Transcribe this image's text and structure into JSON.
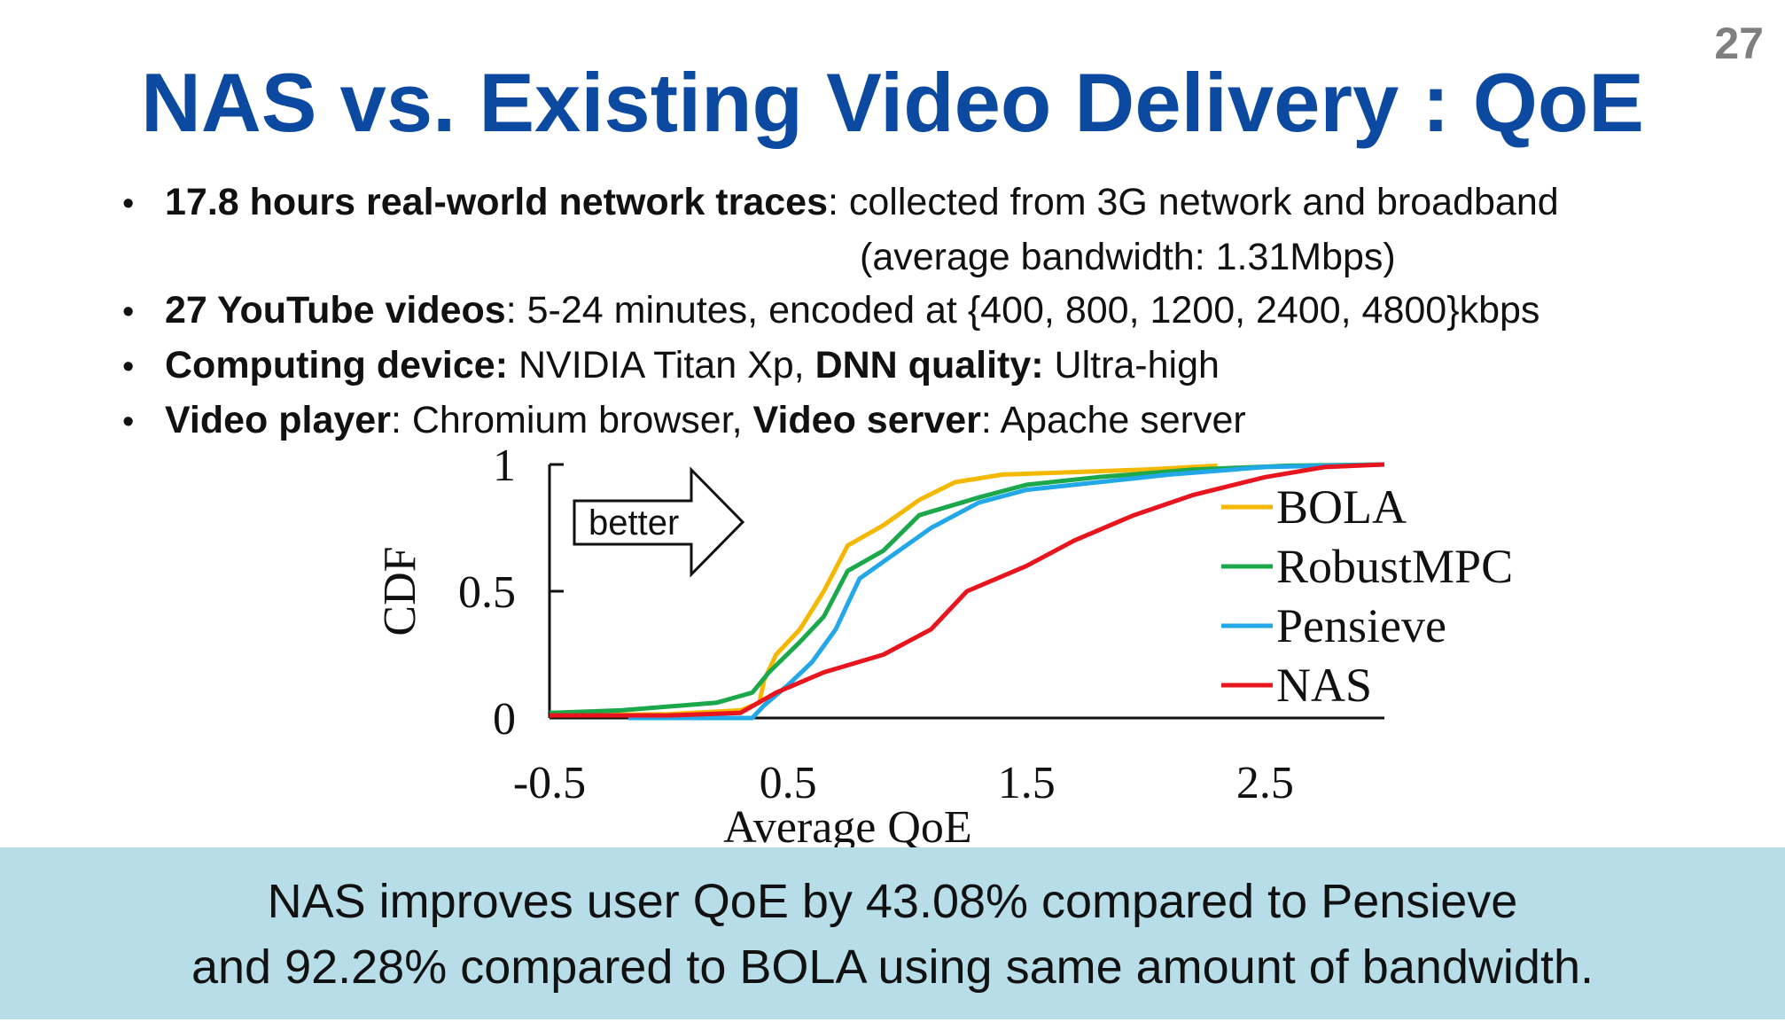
{
  "slide": {
    "number": "27",
    "title": "NAS vs. Existing Video Delivery : QoE"
  },
  "bullets": [
    {
      "bold": "17.8 hours real-world network traces",
      "text": ": collected from 3G network and broadband",
      "cont": "(average bandwidth: 1.31Mbps)"
    },
    {
      "bold": "27 YouTube videos",
      "text": ": 5-24 minutes, encoded at {400, 800, 1200, 2400, 4800}kbps"
    },
    {
      "bold": "Computing device:",
      "text": " NVIDIA Titan Xp, ",
      "bold2": "DNN quality:",
      "text2": " Ultra-high"
    },
    {
      "bold": "Video player",
      "text": ": Chromium browser, ",
      "bold2": "Video server",
      "text2": ": Apache server"
    }
  ],
  "annotation": "better",
  "callout": {
    "line1": "NAS improves user QoE by 43.08% compared to Pensieve",
    "line2": "and 92.28% compared to BOLA using same amount of bandwidth."
  },
  "chart_data": {
    "type": "line",
    "xlabel": "Average QoE",
    "ylabel": "CDF",
    "xlim": [
      -0.5,
      3.0
    ],
    "ylim": [
      0,
      1
    ],
    "xticks": [
      "-0.5",
      "0.5",
      "1.5",
      "2.5"
    ],
    "xtick_values": [
      -0.5,
      0.5,
      1.5,
      2.5
    ],
    "yticks": [
      "0",
      "0.5",
      "1"
    ],
    "ytick_values": [
      0,
      0.5,
      1
    ],
    "legend_position": "right",
    "series": [
      {
        "name": "BOLA",
        "color": "#f5b800",
        "points": [
          [
            -0.5,
            0.01
          ],
          [
            0.0,
            0.015
          ],
          [
            0.3,
            0.03
          ],
          [
            0.38,
            0.06
          ],
          [
            0.4,
            0.15
          ],
          [
            0.45,
            0.25
          ],
          [
            0.55,
            0.35
          ],
          [
            0.65,
            0.5
          ],
          [
            0.75,
            0.68
          ],
          [
            0.9,
            0.76
          ],
          [
            1.05,
            0.86
          ],
          [
            1.2,
            0.93
          ],
          [
            1.4,
            0.96
          ],
          [
            1.7,
            0.97
          ],
          [
            2.0,
            0.98
          ],
          [
            2.3,
            0.995
          ]
        ]
      },
      {
        "name": "RobustMPC",
        "color": "#1aa84a",
        "points": [
          [
            -0.5,
            0.02
          ],
          [
            -0.2,
            0.03
          ],
          [
            0.2,
            0.06
          ],
          [
            0.35,
            0.1
          ],
          [
            0.42,
            0.18
          ],
          [
            0.55,
            0.3
          ],
          [
            0.65,
            0.4
          ],
          [
            0.75,
            0.58
          ],
          [
            0.9,
            0.66
          ],
          [
            1.05,
            0.8
          ],
          [
            1.3,
            0.87
          ],
          [
            1.5,
            0.92
          ],
          [
            1.8,
            0.95
          ],
          [
            2.2,
            0.98
          ],
          [
            2.6,
            0.995
          ],
          [
            3.0,
            1.0
          ]
        ]
      },
      {
        "name": "Pensieve",
        "color": "#22a8e8",
        "points": [
          [
            -0.17,
            0.0
          ],
          [
            0.35,
            0.0
          ],
          [
            0.4,
            0.05
          ],
          [
            0.5,
            0.13
          ],
          [
            0.6,
            0.22
          ],
          [
            0.7,
            0.35
          ],
          [
            0.75,
            0.45
          ],
          [
            0.8,
            0.55
          ],
          [
            0.95,
            0.65
          ],
          [
            1.1,
            0.75
          ],
          [
            1.3,
            0.85
          ],
          [
            1.5,
            0.9
          ],
          [
            1.8,
            0.93
          ],
          [
            2.1,
            0.96
          ],
          [
            2.5,
            0.99
          ],
          [
            3.0,
            1.0
          ]
        ]
      },
      {
        "name": "NAS",
        "color": "#e8141e",
        "points": [
          [
            -0.5,
            0.01
          ],
          [
            0.0,
            0.01
          ],
          [
            0.3,
            0.02
          ],
          [
            0.45,
            0.1
          ],
          [
            0.65,
            0.18
          ],
          [
            0.9,
            0.25
          ],
          [
            1.1,
            0.35
          ],
          [
            1.25,
            0.5
          ],
          [
            1.5,
            0.6
          ],
          [
            1.7,
            0.7
          ],
          [
            1.95,
            0.8
          ],
          [
            2.2,
            0.88
          ],
          [
            2.5,
            0.95
          ],
          [
            2.75,
            0.99
          ],
          [
            3.0,
            1.0
          ]
        ]
      }
    ]
  }
}
